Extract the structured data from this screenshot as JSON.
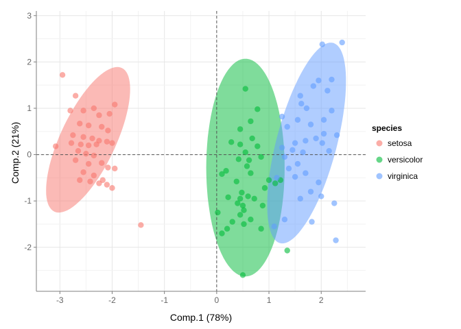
{
  "chart_data": {
    "type": "scatter",
    "xlabel": "Comp.1 (78%)",
    "ylabel": "Comp.2 (21%)",
    "xlim": [
      -3.45,
      2.85
    ],
    "ylim": [
      -2.95,
      3.1
    ],
    "xticks": [
      -3,
      -2,
      -1,
      0,
      1,
      2
    ],
    "yticks": [
      -2,
      -1,
      0,
      1,
      2,
      3
    ],
    "grid": true,
    "reference_lines": {
      "x": 0,
      "y": 0,
      "style": "dashed"
    },
    "legend": {
      "title": "species",
      "position": "right"
    },
    "series": [
      {
        "name": "setosa",
        "color": "#F8766D",
        "ellipse": {
          "cx": -2.46,
          "cy": 0.32,
          "rx": 0.54,
          "ry": 1.68,
          "angle_deg": 22
        },
        "points": [
          [
            -2.95,
            1.72
          ],
          [
            -2.7,
            1.27
          ],
          [
            -2.8,
            0.95
          ],
          [
            -2.55,
            0.95
          ],
          [
            -2.35,
            1.0
          ],
          [
            -2.25,
            0.85
          ],
          [
            -2.05,
            0.88
          ],
          [
            -1.95,
            1.08
          ],
          [
            -2.62,
            0.67
          ],
          [
            -2.45,
            0.63
          ],
          [
            -2.2,
            0.6
          ],
          [
            -2.08,
            0.52
          ],
          [
            -2.75,
            0.42
          ],
          [
            -2.55,
            0.38
          ],
          [
            -2.38,
            0.35
          ],
          [
            -2.25,
            0.3
          ],
          [
            -2.1,
            0.28
          ],
          [
            -2.0,
            0.25
          ],
          [
            -3.08,
            0.18
          ],
          [
            -2.78,
            0.25
          ],
          [
            -2.6,
            0.22
          ],
          [
            -2.45,
            0.2
          ],
          [
            -2.3,
            0.22
          ],
          [
            -2.65,
            0.08
          ],
          [
            -2.5,
            0.02
          ],
          [
            -2.35,
            -0.02
          ],
          [
            -2.7,
            -0.12
          ],
          [
            -2.45,
            -0.2
          ],
          [
            -2.2,
            -0.18
          ],
          [
            -2.08,
            -0.28
          ],
          [
            -1.95,
            -0.3
          ],
          [
            -2.55,
            -0.38
          ],
          [
            -2.35,
            -0.45
          ],
          [
            -2.62,
            -0.55
          ],
          [
            -2.42,
            -0.58
          ],
          [
            -2.18,
            -0.55
          ],
          [
            -2.25,
            -0.62
          ],
          [
            -2.1,
            -0.65
          ],
          [
            -2.0,
            -0.72
          ],
          [
            -1.45,
            -1.52
          ]
        ]
      },
      {
        "name": "versicolor",
        "color": "#00BA38",
        "ellipse": {
          "cx": 0.55,
          "cy": -0.28,
          "rx": 0.75,
          "ry": 2.35,
          "angle_deg": 0
        },
        "points": [
          [
            0.55,
            1.42
          ],
          [
            0.78,
            0.98
          ],
          [
            0.65,
            0.72
          ],
          [
            0.45,
            0.55
          ],
          [
            0.68,
            0.35
          ],
          [
            0.28,
            0.27
          ],
          [
            0.45,
            0.22
          ],
          [
            0.78,
            0.18
          ],
          [
            0.55,
            0.05
          ],
          [
            0.42,
            -0.1
          ],
          [
            0.62,
            -0.12
          ],
          [
            0.85,
            -0.05
          ],
          [
            0.58,
            -0.25
          ],
          [
            0.18,
            -0.35
          ],
          [
            0.1,
            -0.42
          ],
          [
            0.65,
            -0.4
          ],
          [
            0.38,
            -0.58
          ],
          [
            1.12,
            -0.62
          ],
          [
            0.92,
            -0.72
          ],
          [
            0.48,
            -0.82
          ],
          [
            0.22,
            -0.92
          ],
          [
            0.45,
            -0.95
          ],
          [
            0.6,
            -0.9
          ],
          [
            0.72,
            -0.95
          ],
          [
            0.4,
            -1.05
          ],
          [
            0.5,
            -1.1
          ],
          [
            0.88,
            -1.1
          ],
          [
            0.52,
            -1.2
          ],
          [
            0.02,
            -1.25
          ],
          [
            0.45,
            -1.3
          ],
          [
            0.65,
            -1.4
          ],
          [
            0.3,
            -1.45
          ],
          [
            0.2,
            -1.6
          ],
          [
            0.52,
            -1.5
          ],
          [
            1.0,
            -0.55
          ],
          [
            1.22,
            -0.55
          ],
          [
            1.35,
            -2.07
          ],
          [
            0.5,
            -2.6
          ],
          [
            0.1,
            -1.7
          ],
          [
            0.85,
            -1.6
          ]
        ]
      },
      {
        "name": "virginica",
        "color": "#619CFF",
        "ellipse": {
          "cx": 1.72,
          "cy": 0.25,
          "rx": 0.58,
          "ry": 2.22,
          "angle_deg": 13
        },
        "points": [
          [
            2.02,
            2.38
          ],
          [
            2.4,
            2.42
          ],
          [
            1.95,
            1.6
          ],
          [
            2.2,
            1.62
          ],
          [
            1.85,
            1.48
          ],
          [
            1.6,
            1.27
          ],
          [
            2.12,
            1.38
          ],
          [
            1.72,
            1.0
          ],
          [
            2.05,
            0.75
          ],
          [
            2.2,
            0.95
          ],
          [
            1.55,
            0.75
          ],
          [
            1.25,
            0.82
          ],
          [
            1.35,
            0.6
          ],
          [
            1.8,
            0.65
          ],
          [
            2.3,
            0.42
          ],
          [
            2.05,
            0.45
          ],
          [
            1.9,
            0.35
          ],
          [
            1.7,
            0.3
          ],
          [
            1.5,
            0.25
          ],
          [
            2.02,
            0.25
          ],
          [
            1.25,
            0.15
          ],
          [
            1.45,
            0.1
          ],
          [
            1.65,
            0.05
          ],
          [
            1.3,
            -0.05
          ],
          [
            1.55,
            -0.2
          ],
          [
            1.15,
            -0.5
          ],
          [
            1.5,
            -0.48
          ],
          [
            1.8,
            -0.8
          ],
          [
            2.0,
            -0.9
          ],
          [
            2.25,
            -1.05
          ],
          [
            1.3,
            -1.4
          ],
          [
            1.82,
            -1.45
          ],
          [
            2.28,
            -1.85
          ],
          [
            1.1,
            -1.55
          ],
          [
            1.6,
            -0.95
          ],
          [
            1.95,
            -0.6
          ],
          [
            1.38,
            -0.3
          ],
          [
            1.7,
            -0.4
          ],
          [
            2.15,
            0.08
          ],
          [
            1.62,
            1.1
          ]
        ]
      }
    ]
  }
}
